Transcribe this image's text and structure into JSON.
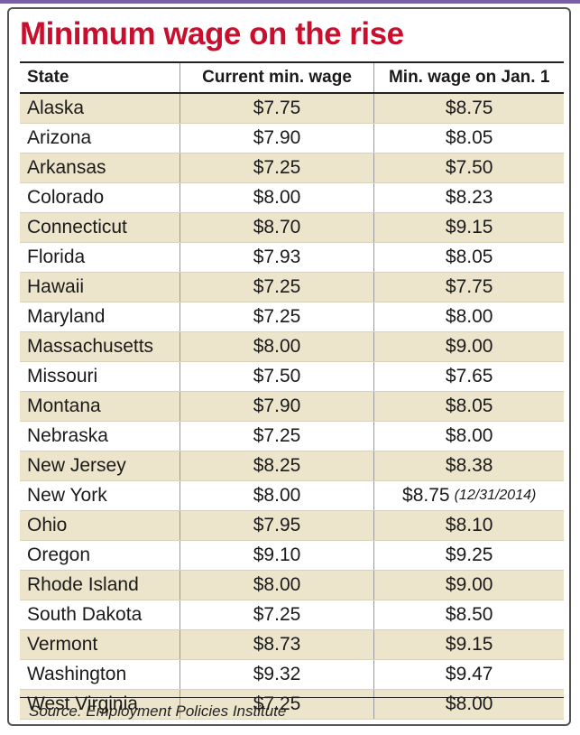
{
  "header": {
    "title": "Minimum wage on the rise"
  },
  "table": {
    "columns": [
      "State",
      "Current min. wage",
      "Min. wage on Jan. 1"
    ],
    "rows": [
      {
        "state": "Alaska",
        "current": "$7.75",
        "jan1": "$8.75"
      },
      {
        "state": "Arizona",
        "current": "$7.90",
        "jan1": "$8.05"
      },
      {
        "state": "Arkansas",
        "current": "$7.25",
        "jan1": "$7.50"
      },
      {
        "state": "Colorado",
        "current": "$8.00",
        "jan1": "$8.23"
      },
      {
        "state": "Connecticut",
        "current": "$8.70",
        "jan1": "$9.15"
      },
      {
        "state": "Florida",
        "current": "$7.93",
        "jan1": "$8.05"
      },
      {
        "state": "Hawaii",
        "current": "$7.25",
        "jan1": "$7.75"
      },
      {
        "state": "Maryland",
        "current": "$7.25",
        "jan1": "$8.00"
      },
      {
        "state": "Massachusetts",
        "current": "$8.00",
        "jan1": "$9.00"
      },
      {
        "state": "Missouri",
        "current": "$7.50",
        "jan1": "$7.65"
      },
      {
        "state": "Montana",
        "current": "$7.90",
        "jan1": "$8.05"
      },
      {
        "state": "Nebraska",
        "current": "$7.25",
        "jan1": "$8.00"
      },
      {
        "state": "New Jersey",
        "current": "$8.25",
        "jan1": "$8.38"
      },
      {
        "state": "New York",
        "current": "$8.00",
        "jan1": "$8.75",
        "note": "(12/31/2014)"
      },
      {
        "state": "Ohio",
        "current": "$7.95",
        "jan1": "$8.10"
      },
      {
        "state": "Oregon",
        "current": "$9.10",
        "jan1": "$9.25"
      },
      {
        "state": "Rhode Island",
        "current": "$8.00",
        "jan1": "$9.00"
      },
      {
        "state": "South Dakota",
        "current": "$7.25",
        "jan1": "$8.50"
      },
      {
        "state": "Vermont",
        "current": "$8.73",
        "jan1": "$9.15"
      },
      {
        "state": "Washington",
        "current": "$9.32",
        "jan1": "$9.47"
      },
      {
        "state": "West Virginia",
        "current": "$7.25",
        "jan1": "$8.00"
      }
    ]
  },
  "footer": {
    "source": "Source: Employment Policies Institute"
  }
}
